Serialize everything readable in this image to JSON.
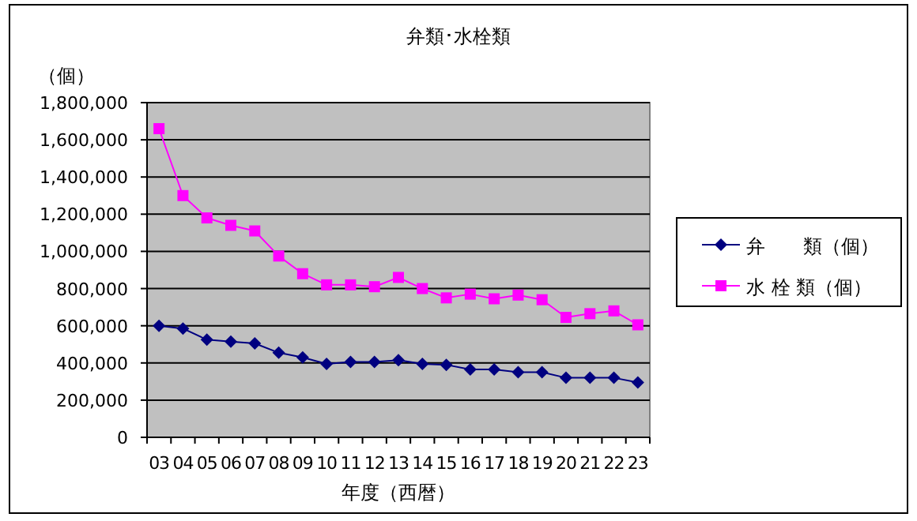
{
  "chart_data": {
    "type": "line",
    "title": "弁類･水栓類",
    "xlabel": "年度（西暦）",
    "ylabel": "（個）",
    "categories": [
      "03",
      "04",
      "05",
      "06",
      "07",
      "08",
      "09",
      "10",
      "11",
      "12",
      "13",
      "14",
      "15",
      "16",
      "17",
      "18",
      "19",
      "20",
      "21",
      "22",
      "23"
    ],
    "series": [
      {
        "name": "弁　　類（個）",
        "color": "#000080",
        "marker": "diamond",
        "values": [
          600000,
          585000,
          525000,
          515000,
          505000,
          455000,
          430000,
          395000,
          405000,
          405000,
          415000,
          395000,
          390000,
          365000,
          365000,
          350000,
          350000,
          320000,
          320000,
          320000,
          295000
        ]
      },
      {
        "name": "水 栓 類（個）",
        "color": "#ff00ff",
        "marker": "square",
        "values": [
          1660000,
          1300000,
          1180000,
          1140000,
          1110000,
          975000,
          880000,
          820000,
          820000,
          810000,
          860000,
          800000,
          750000,
          770000,
          745000,
          765000,
          740000,
          645000,
          665000,
          680000,
          605000
        ]
      }
    ],
    "ylim": [
      0,
      1800000
    ],
    "yticks": [
      0,
      {
        "value": 200000,
        "label": "200,000"
      },
      {
        "value": 400000,
        "label": "400,000"
      },
      {
        "value": 600000,
        "label": "600,000"
      },
      {
        "value": 800000,
        "label": "800,000"
      },
      {
        "value": 1000000,
        "label": "1,000,000"
      },
      {
        "value": 1200000,
        "label": "1,200,000"
      },
      {
        "value": 1400000,
        "label": "1,400,000"
      },
      {
        "value": 1600000,
        "label": "1,600,000"
      },
      {
        "value": 1800000,
        "label": "1,800,000"
      }
    ],
    "grid": "y",
    "legend": "right"
  }
}
